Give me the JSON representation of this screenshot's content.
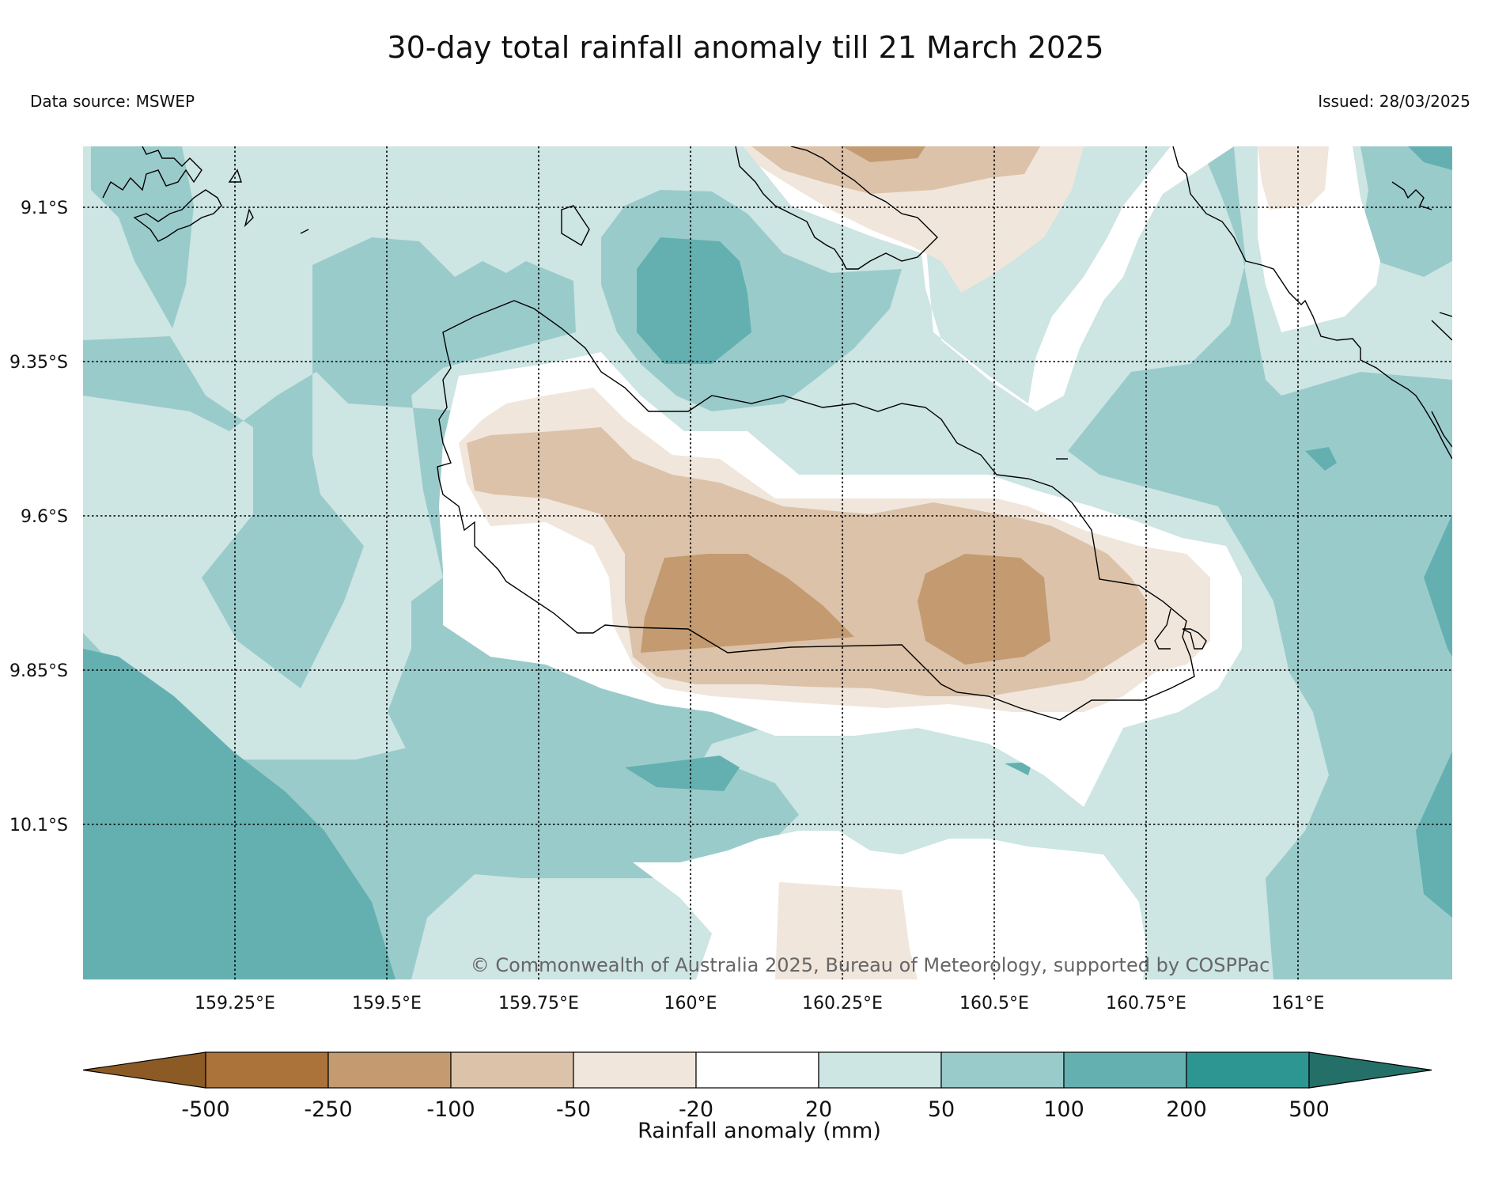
{
  "header": {
    "title": "30-day total rainfall anomaly till 21 March 2025",
    "data_source": "Data source: MSWEP",
    "issued": "Issued: 28/03/2025"
  },
  "map": {
    "lat_labels": [
      "9.1°S",
      "9.35°S",
      "9.6°S",
      "9.85°S",
      "10.1°S"
    ],
    "lon_labels": [
      "159.25°E",
      "159.5°E",
      "159.75°E",
      "160°E",
      "160.25°E",
      "160.5°E",
      "160.75°E",
      "161°E"
    ],
    "copyright": "© Commonwealth of Australia 2025, Bureau of Meteorology, supported by COSPPac"
  },
  "colorbar": {
    "title": "Rainfall anomaly (mm)",
    "tick_labels": [
      "-500",
      "-250",
      "-100",
      "-50",
      "-20",
      "20",
      "50",
      "100",
      "200",
      "500"
    ],
    "colors": [
      "#8c5a24",
      "#ab723a",
      "#c49a70",
      "#dbc2a9",
      "#f0e6dc",
      "#ffffff",
      "#cde5e3",
      "#9acbcb",
      "#64b0b1",
      "#2e9692",
      "#247069"
    ]
  }
}
